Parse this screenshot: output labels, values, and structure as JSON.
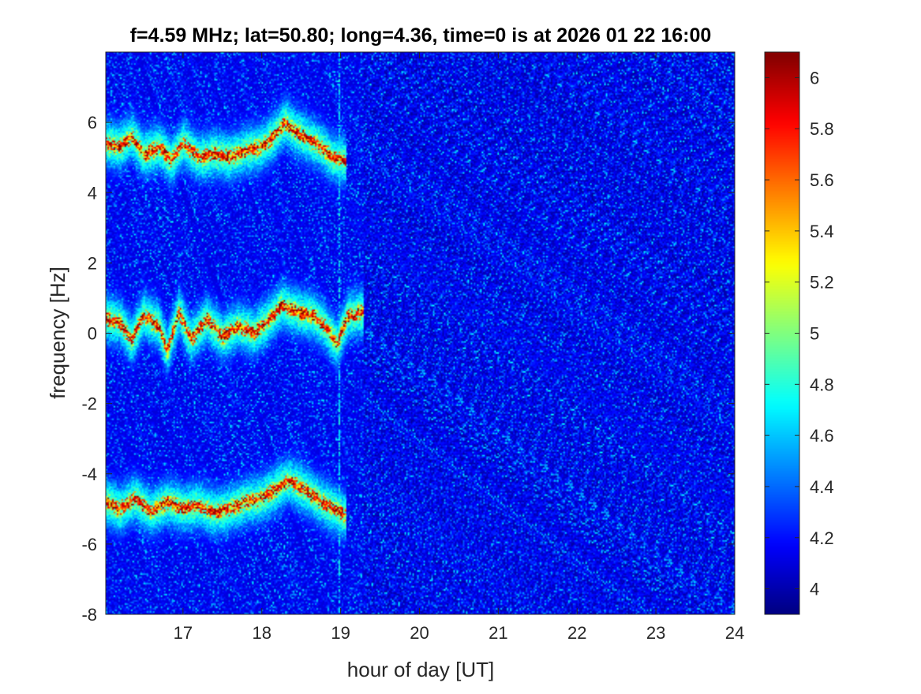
{
  "chart_data": {
    "type": "heatmap",
    "title": "f=4.59 MHz;  lat=50.80; long=4.36, time=0 is at 2026 01 22 16:00",
    "xlabel": "hour of day [UT]",
    "ylabel": "frequency [Hz]",
    "xlim": [
      16.02,
      24
    ],
    "ylim": [
      -8,
      8
    ],
    "x_ticks": [
      17,
      18,
      19,
      20,
      21,
      22,
      23,
      24
    ],
    "x_tick_labels": [
      "17",
      "18",
      "19",
      "20",
      "21",
      "22",
      "23",
      "24"
    ],
    "y_ticks": [
      -8,
      -6,
      -4,
      -2,
      0,
      2,
      4,
      6
    ],
    "y_tick_labels": [
      "-8",
      "-6",
      "-4",
      "-2",
      "0",
      "2",
      "4",
      "6"
    ],
    "colorbar": {
      "colormap": "jet",
      "clim": [
        3.9,
        6.1
      ],
      "ticks": [
        4,
        4.2,
        4.4,
        4.6,
        4.8,
        5,
        5.2,
        5.4,
        5.6,
        5.8,
        6
      ],
      "tick_labels": [
        "4",
        "4.2",
        "4.4",
        "4.6",
        "4.8",
        "5",
        "5.2",
        "5.4",
        "5.6",
        "5.8",
        "6"
      ]
    },
    "background_level": 4.1,
    "traces": [
      {
        "points": [
          [
            16.02,
            5.4
          ],
          [
            16.2,
            5.3
          ],
          [
            16.35,
            5.6
          ],
          [
            16.5,
            5.1
          ],
          [
            16.7,
            5.3
          ],
          [
            16.85,
            4.9
          ],
          [
            17.0,
            5.4
          ],
          [
            17.2,
            5.0
          ],
          [
            17.4,
            5.1
          ],
          [
            17.6,
            5.0
          ],
          [
            17.8,
            5.2
          ],
          [
            18.0,
            5.3
          ],
          [
            18.15,
            5.6
          ],
          [
            18.3,
            6.0
          ],
          [
            18.45,
            5.7
          ],
          [
            18.6,
            5.5
          ],
          [
            18.75,
            5.3
          ],
          [
            18.9,
            5.0
          ],
          [
            19.07,
            4.9
          ]
        ],
        "peak": 6.1
      },
      {
        "points": [
          [
            16.02,
            0.4
          ],
          [
            16.2,
            0.3
          ],
          [
            16.35,
            -0.2
          ],
          [
            16.5,
            0.5
          ],
          [
            16.7,
            0.2
          ],
          [
            16.8,
            -0.5
          ],
          [
            16.95,
            0.6
          ],
          [
            17.1,
            -0.2
          ],
          [
            17.3,
            0.4
          ],
          [
            17.5,
            -0.1
          ],
          [
            17.7,
            0.2
          ],
          [
            17.9,
            0.0
          ],
          [
            18.1,
            0.4
          ],
          [
            18.25,
            0.8
          ],
          [
            18.45,
            0.6
          ],
          [
            18.65,
            0.5
          ],
          [
            18.8,
            0.2
          ],
          [
            18.95,
            -0.3
          ],
          [
            19.1,
            0.5
          ],
          [
            19.3,
            0.6
          ]
        ],
        "peak": 6.1
      },
      {
        "points": [
          [
            16.02,
            -4.8
          ],
          [
            16.2,
            -5.0
          ],
          [
            16.4,
            -4.7
          ],
          [
            16.6,
            -5.1
          ],
          [
            16.8,
            -4.8
          ],
          [
            17.0,
            -5.0
          ],
          [
            17.2,
            -4.9
          ],
          [
            17.4,
            -5.1
          ],
          [
            17.6,
            -5.0
          ],
          [
            17.8,
            -4.8
          ],
          [
            18.0,
            -4.7
          ],
          [
            18.2,
            -4.4
          ],
          [
            18.35,
            -4.2
          ],
          [
            18.5,
            -4.4
          ],
          [
            18.7,
            -4.7
          ],
          [
            18.9,
            -5.0
          ],
          [
            19.07,
            -5.2
          ]
        ],
        "peak": 6.1
      }
    ],
    "vertical_line": {
      "x": 18.98,
      "level": 4.7
    }
  }
}
